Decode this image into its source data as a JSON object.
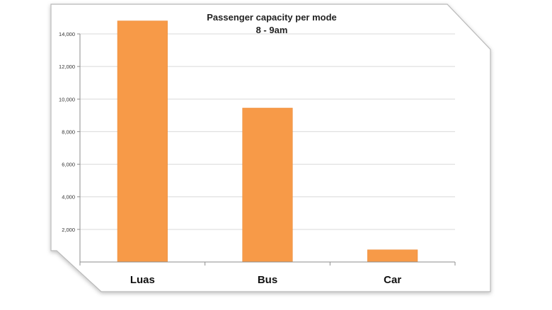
{
  "chart_data": {
    "type": "bar",
    "title": "Passenger capacity per mode",
    "subtitle": "8 - 9am",
    "categories": [
      "Luas",
      "Bus",
      "Car"
    ],
    "values": [
      14800,
      9450,
      750
    ],
    "ylim": [
      0,
      14000
    ],
    "yticks": [
      "2,000",
      "4,000",
      "6,000",
      "8,000",
      "10,000",
      "12,000",
      "14,000"
    ],
    "ytick_values": [
      2000,
      4000,
      6000,
      8000,
      10000,
      12000,
      14000
    ],
    "grid": true,
    "legend": "none",
    "colors": {
      "bar": "#f79a48",
      "bar_edge": "#e98a38",
      "grid": "#d9d9d9",
      "axis": "#8c8c8c",
      "frame": "#b8b8b8"
    }
  }
}
